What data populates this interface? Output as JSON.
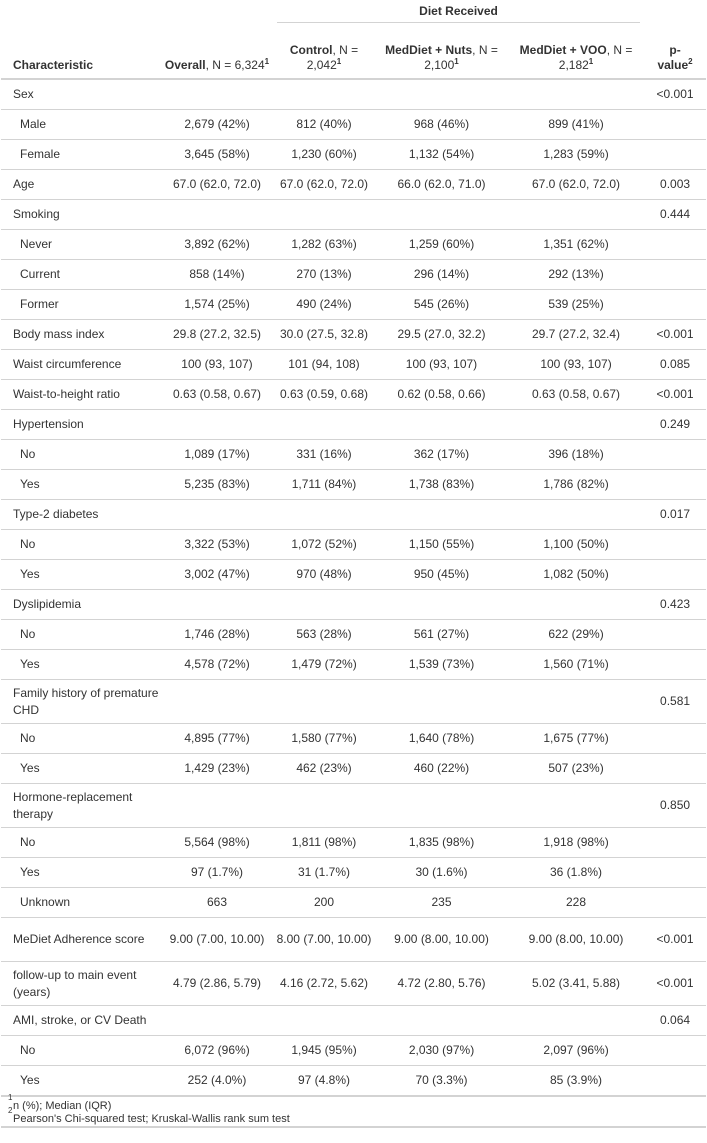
{
  "spanner": "Diet Received",
  "columns": {
    "label": "Characteristic",
    "overall": {
      "name": "Overall",
      "n": "N = 6,324"
    },
    "control": {
      "name": "Control",
      "n": "N = 2,042"
    },
    "nuts": {
      "name": "MedDiet + Nuts",
      "n": "N = 2,100"
    },
    "voo": {
      "name": "MedDiet + VOO",
      "n": "N = 2,182"
    },
    "p": {
      "line1": "p-",
      "line2": "value"
    }
  },
  "rows": [
    {
      "label": "Sex",
      "indent": false,
      "cells": [
        "",
        "",
        "",
        ""
      ],
      "p": "<0.001"
    },
    {
      "label": "Male",
      "indent": true,
      "cells": [
        "2,679 (42%)",
        "812 (40%)",
        "968 (46%)",
        "899 (41%)"
      ],
      "p": ""
    },
    {
      "label": "Female",
      "indent": true,
      "cells": [
        "3,645 (58%)",
        "1,230 (60%)",
        "1,132 (54%)",
        "1,283 (59%)"
      ],
      "p": ""
    },
    {
      "label": "Age",
      "indent": false,
      "cells": [
        "67.0 (62.0, 72.0)",
        "67.0 (62.0, 72.0)",
        "66.0 (62.0, 71.0)",
        "67.0 (62.0, 72.0)"
      ],
      "p": "0.003"
    },
    {
      "label": "Smoking",
      "indent": false,
      "cells": [
        "",
        "",
        "",
        ""
      ],
      "p": "0.444"
    },
    {
      "label": "Never",
      "indent": true,
      "cells": [
        "3,892 (62%)",
        "1,282 (63%)",
        "1,259 (60%)",
        "1,351 (62%)"
      ],
      "p": ""
    },
    {
      "label": "Current",
      "indent": true,
      "cells": [
        "858 (14%)",
        "270 (13%)",
        "296 (14%)",
        "292 (13%)"
      ],
      "p": ""
    },
    {
      "label": "Former",
      "indent": true,
      "cells": [
        "1,574 (25%)",
        "490 (24%)",
        "545 (26%)",
        "539 (25%)"
      ],
      "p": ""
    },
    {
      "label": "Body mass index",
      "indent": false,
      "cells": [
        "29.8 (27.2, 32.5)",
        "30.0 (27.5, 32.8)",
        "29.5 (27.0, 32.2)",
        "29.7 (27.2, 32.4)"
      ],
      "p": "<0.001"
    },
    {
      "label": "Waist circumference",
      "indent": false,
      "cells": [
        "100 (93, 107)",
        "101 (94, 108)",
        "100 (93, 107)",
        "100 (93, 107)"
      ],
      "p": "0.085"
    },
    {
      "label": "Waist-to-height ratio",
      "indent": false,
      "cells": [
        "0.63 (0.58, 0.67)",
        "0.63 (0.59, 0.68)",
        "0.62 (0.58, 0.66)",
        "0.63 (0.58, 0.67)"
      ],
      "p": "<0.001"
    },
    {
      "label": "Hypertension",
      "indent": false,
      "cells": [
        "",
        "",
        "",
        ""
      ],
      "p": "0.249"
    },
    {
      "label": "No",
      "indent": true,
      "cells": [
        "1,089 (17%)",
        "331 (16%)",
        "362 (17%)",
        "396 (18%)"
      ],
      "p": ""
    },
    {
      "label": "Yes",
      "indent": true,
      "cells": [
        "5,235 (83%)",
        "1,711 (84%)",
        "1,738 (83%)",
        "1,786 (82%)"
      ],
      "p": ""
    },
    {
      "label": "Type-2 diabetes",
      "indent": false,
      "cells": [
        "",
        "",
        "",
        ""
      ],
      "p": "0.017"
    },
    {
      "label": "No",
      "indent": true,
      "cells": [
        "3,322 (53%)",
        "1,072 (52%)",
        "1,150 (55%)",
        "1,100 (50%)"
      ],
      "p": ""
    },
    {
      "label": "Yes",
      "indent": true,
      "cells": [
        "3,002 (47%)",
        "970 (48%)",
        "950 (45%)",
        "1,082 (50%)"
      ],
      "p": ""
    },
    {
      "label": "Dyslipidemia",
      "indent": false,
      "cells": [
        "",
        "",
        "",
        ""
      ],
      "p": "0.423"
    },
    {
      "label": "No",
      "indent": true,
      "cells": [
        "1,746 (28%)",
        "563 (28%)",
        "561 (27%)",
        "622 (29%)"
      ],
      "p": ""
    },
    {
      "label": "Yes",
      "indent": true,
      "cells": [
        "4,578 (72%)",
        "1,479 (72%)",
        "1,539 (73%)",
        "1,560 (71%)"
      ],
      "p": ""
    },
    {
      "label": "Family history of premature CHD",
      "indent": false,
      "tall": true,
      "cells": [
        "",
        "",
        "",
        ""
      ],
      "p": "0.581"
    },
    {
      "label": "No",
      "indent": true,
      "cells": [
        "4,895 (77%)",
        "1,580 (77%)",
        "1,640 (78%)",
        "1,675 (77%)"
      ],
      "p": ""
    },
    {
      "label": "Yes",
      "indent": true,
      "cells": [
        "1,429 (23%)",
        "462 (23%)",
        "460 (22%)",
        "507 (23%)"
      ],
      "p": ""
    },
    {
      "label": "Hormone-replacement therapy",
      "indent": false,
      "tall": true,
      "cells": [
        "",
        "",
        "",
        ""
      ],
      "p": "0.850"
    },
    {
      "label": "No",
      "indent": true,
      "cells": [
        "5,564 (98%)",
        "1,811 (98%)",
        "1,835 (98%)",
        "1,918 (98%)"
      ],
      "p": ""
    },
    {
      "label": "Yes",
      "indent": true,
      "cells": [
        "97 (1.7%)",
        "31 (1.7%)",
        "30 (1.6%)",
        "36 (1.8%)"
      ],
      "p": ""
    },
    {
      "label": "Unknown",
      "indent": true,
      "cells": [
        "663",
        "200",
        "235",
        "228"
      ],
      "p": ""
    },
    {
      "label": "MeDiet Adherence score",
      "indent": false,
      "tall": true,
      "cells": [
        "9.00 (7.00, 10.00)",
        "8.00 (7.00, 10.00)",
        "9.00 (8.00, 10.00)",
        "9.00 (8.00, 10.00)"
      ],
      "p": "<0.001"
    },
    {
      "label": "follow-up to main event (years)",
      "indent": false,
      "tall": true,
      "cells": [
        "4.79 (2.86, 5.79)",
        "4.16 (2.72, 5.62)",
        "4.72 (2.80, 5.76)",
        "5.02 (3.41, 5.88)"
      ],
      "p": "<0.001"
    },
    {
      "label": "AMI, stroke, or CV Death",
      "indent": false,
      "cells": [
        "",
        "",
        "",
        ""
      ],
      "p": "0.064"
    },
    {
      "label": "No",
      "indent": true,
      "cells": [
        "6,072 (96%)",
        "1,945 (95%)",
        "2,030 (97%)",
        "2,097 (96%)"
      ],
      "p": ""
    },
    {
      "label": "Yes",
      "indent": true,
      "cells": [
        "252 (4.0%)",
        "97 (4.8%)",
        "70 (3.3%)",
        "85 (3.9%)"
      ],
      "p": ""
    }
  ],
  "footnotes": [
    {
      "mark": "1",
      "text": "n (%); Median (IQR)"
    },
    {
      "mark": "2",
      "text": "Pearson's Chi-squared test; Kruskal-Wallis rank sum test"
    }
  ]
}
